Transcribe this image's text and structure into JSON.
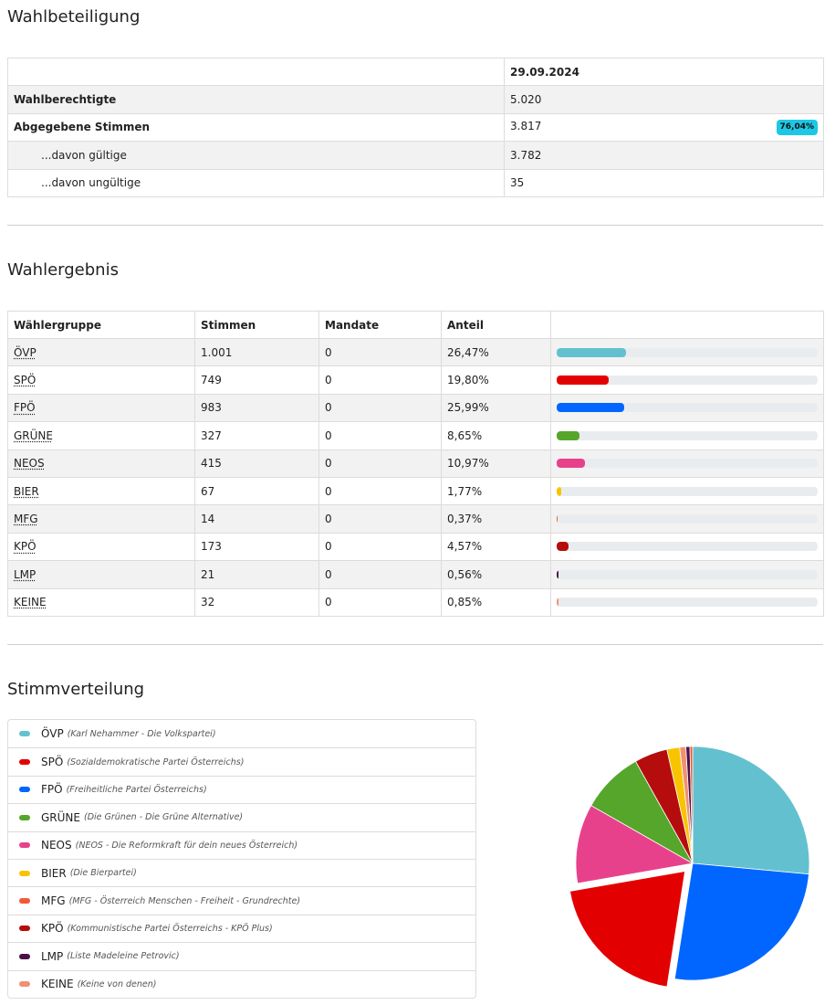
{
  "turnout": {
    "title": "Wahlbeteiligung",
    "date": "29.09.2024",
    "rows": [
      {
        "label": "Wahlberechtigte",
        "value": "5.020",
        "badge": ""
      },
      {
        "label": "Abgegebene Stimmen",
        "value": "3.817",
        "badge": "76,04%"
      },
      {
        "label": "...davon gültige",
        "value": "3.782",
        "badge": ""
      },
      {
        "label": "...davon ungültige",
        "value": "35",
        "badge": ""
      }
    ]
  },
  "results": {
    "title": "Wahlergebnis",
    "headers": [
      "Wählergruppe",
      "Stimmen",
      "Mandate",
      "Anteil",
      ""
    ],
    "rows": [
      {
        "party": "ÖVP",
        "votes": "1.001",
        "seats": "0",
        "share": "26,47%",
        "pct": 26.47,
        "color": "#63c1cf"
      },
      {
        "party": "SPÖ",
        "votes": "749",
        "seats": "0",
        "share": "19,80%",
        "pct": 19.8,
        "color": "#e30000"
      },
      {
        "party": "FPÖ",
        "votes": "983",
        "seats": "0",
        "share": "25,99%",
        "pct": 25.99,
        "color": "#0066ff"
      },
      {
        "party": "GRÜNE",
        "votes": "327",
        "seats": "0",
        "share": "8,65%",
        "pct": 8.65,
        "color": "#56a62b"
      },
      {
        "party": "NEOS",
        "votes": "415",
        "seats": "0",
        "share": "10,97%",
        "pct": 10.97,
        "color": "#e8418b"
      },
      {
        "party": "BIER",
        "votes": "67",
        "seats": "0",
        "share": "1,77%",
        "pct": 1.77,
        "color": "#f8c400"
      },
      {
        "party": "MFG",
        "votes": "14",
        "seats": "0",
        "share": "0,37%",
        "pct": 0.37,
        "color": "#f15a37"
      },
      {
        "party": "KPÖ",
        "votes": "173",
        "seats": "0",
        "share": "4,57%",
        "pct": 4.57,
        "color": "#b50d0d"
      },
      {
        "party": "LMP",
        "votes": "21",
        "seats": "0",
        "share": "0,56%",
        "pct": 0.56,
        "color": "#4a1145"
      },
      {
        "party": "KEINE",
        "votes": "32",
        "seats": "0",
        "share": "0,85%",
        "pct": 0.85,
        "color": "#f09074"
      }
    ]
  },
  "distribution": {
    "title": "Stimmverteilung",
    "legend": [
      {
        "short": "ÖVP",
        "full": "(Karl Nehammer - Die Volkspartei)",
        "color": "#63c1cf"
      },
      {
        "short": "SPÖ",
        "full": "(Sozialdemokratische Partei Österreichs)",
        "color": "#e30000"
      },
      {
        "short": "FPÖ",
        "full": "(Freiheitliche Partei Österreichs)",
        "color": "#0066ff"
      },
      {
        "short": "GRÜNE",
        "full": "(Die Grünen - Die Grüne Alternative)",
        "color": "#56a62b"
      },
      {
        "short": "NEOS",
        "full": "(NEOS - Die Reformkraft für dein neues Österreich)",
        "color": "#e8418b"
      },
      {
        "short": "BIER",
        "full": "(Die Bierpartei)",
        "color": "#f8c400"
      },
      {
        "short": "MFG",
        "full": "(MFG - Österreich Menschen - Freiheit - Grundrechte)",
        "color": "#f15a37"
      },
      {
        "short": "KPÖ",
        "full": "(Kommunistische Partei Österreichs - KPÖ Plus)",
        "color": "#b50d0d"
      },
      {
        "short": "LMP",
        "full": "(Liste Madeleine Petrovic)",
        "color": "#4a1145"
      },
      {
        "short": "KEINE",
        "full": "(Keine von denen)",
        "color": "#f09074"
      }
    ]
  },
  "chart_data": {
    "type": "pie",
    "categories": [
      "ÖVP",
      "FPÖ",
      "SPÖ",
      "NEOS",
      "GRÜNE",
      "KPÖ",
      "BIER",
      "KEINE",
      "LMP",
      "MFG"
    ],
    "values": [
      1001,
      983,
      749,
      415,
      327,
      173,
      67,
      32,
      21,
      14
    ],
    "colors": [
      "#63c1cf",
      "#0066ff",
      "#e30000",
      "#e8418b",
      "#56a62b",
      "#b50d0d",
      "#f8c400",
      "#f09074",
      "#4a1145",
      "#f15a37"
    ],
    "exploded": "SPÖ"
  }
}
